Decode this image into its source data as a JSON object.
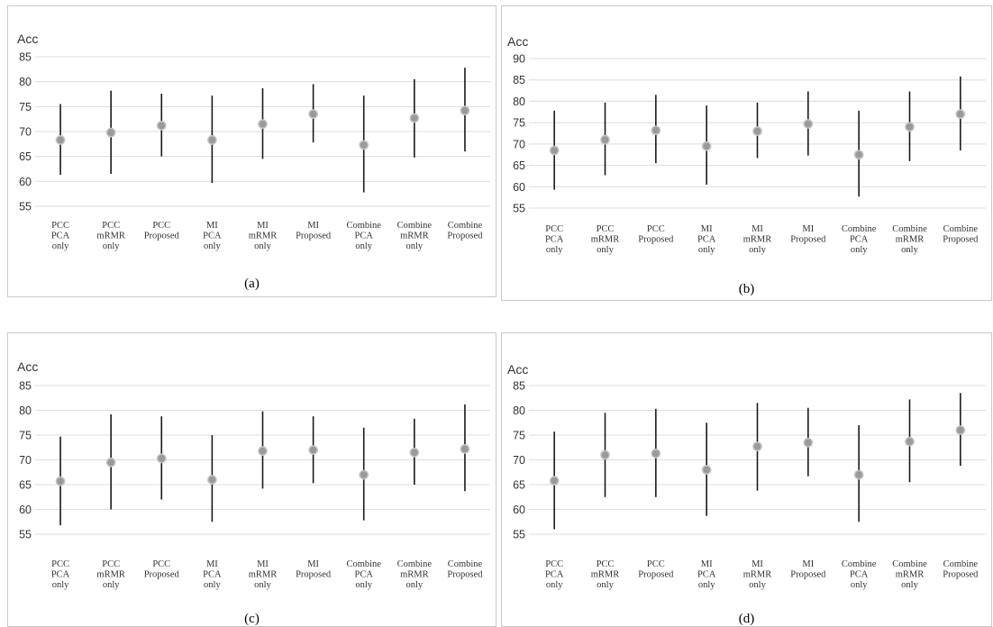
{
  "chart_data": [
    {
      "panel_label": "(a)",
      "type": "scatter",
      "ylabel": "Acc",
      "ylim": [
        55,
        85
      ],
      "yticks": [
        55,
        60,
        65,
        70,
        75,
        80,
        85
      ],
      "grid": true,
      "categories": [
        [
          "PCC",
          "PCA",
          "only"
        ],
        [
          "PCC",
          "mRMR",
          "only"
        ],
        [
          "PCC",
          "Proposed"
        ],
        [
          "MI",
          "PCA",
          "only"
        ],
        [
          "MI",
          "mRMR",
          "only"
        ],
        [
          "MI",
          "Proposed"
        ],
        [
          "Combine",
          "PCA",
          "only"
        ],
        [
          "Combine",
          "mRMR",
          "only"
        ],
        [
          "Combine",
          "Proposed"
        ]
      ],
      "values": [
        68.3,
        69.8,
        71.2,
        68.3,
        71.5,
        73.5,
        67.3,
        72.7,
        74.2
      ],
      "lower": [
        61.3,
        61.5,
        65.0,
        59.7,
        64.5,
        67.8,
        57.8,
        64.8,
        66.0
      ],
      "upper": [
        75.5,
        78.2,
        77.6,
        77.2,
        78.7,
        79.5,
        77.2,
        80.5,
        82.8
      ]
    },
    {
      "panel_label": "(b)",
      "type": "scatter",
      "ylabel": "Acc",
      "ylim": [
        55,
        90
      ],
      "yticks": [
        55,
        60,
        65,
        70,
        75,
        80,
        85,
        90
      ],
      "grid": true,
      "categories": [
        [
          "PCC",
          "PCA",
          "only"
        ],
        [
          "PCC",
          "mRMR",
          "only"
        ],
        [
          "PCC",
          "Proposed"
        ],
        [
          "MI",
          "PCA",
          "only"
        ],
        [
          "MI",
          "mRMR",
          "only"
        ],
        [
          "MI",
          "Proposed"
        ],
        [
          "Combine",
          "PCA",
          "only"
        ],
        [
          "Combine",
          "mRMR",
          "only"
        ],
        [
          "Combine",
          "Proposed"
        ]
      ],
      "values": [
        68.5,
        71.0,
        73.2,
        69.5,
        73.0,
        74.7,
        67.5,
        74.0,
        77.0
      ],
      "lower": [
        59.3,
        62.7,
        65.5,
        60.5,
        66.7,
        67.3,
        57.7,
        66.0,
        68.5
      ],
      "upper": [
        77.8,
        79.7,
        81.5,
        79.0,
        79.7,
        82.3,
        77.8,
        82.3,
        85.8
      ]
    },
    {
      "panel_label": "(c)",
      "type": "scatter",
      "ylabel": "Acc",
      "ylim": [
        55,
        85
      ],
      "yticks": [
        55,
        60,
        65,
        70,
        75,
        80,
        85
      ],
      "grid": true,
      "categories": [
        [
          "PCC",
          "PCA",
          "only"
        ],
        [
          "PCC",
          "mRMR",
          "only"
        ],
        [
          "PCC",
          "Proposed"
        ],
        [
          "MI",
          "PCA",
          "only"
        ],
        [
          "MI",
          "mRMR",
          "only"
        ],
        [
          "MI",
          "Proposed"
        ],
        [
          "Combine",
          "PCA",
          "only"
        ],
        [
          "Combine",
          "mRMR",
          "only"
        ],
        [
          "Combine",
          "Proposed"
        ]
      ],
      "values": [
        65.7,
        69.5,
        70.3,
        66.0,
        71.8,
        72.0,
        67.0,
        71.5,
        72.2
      ],
      "lower": [
        56.8,
        60.0,
        62.0,
        57.5,
        64.2,
        65.3,
        57.8,
        65.0,
        63.7
      ],
      "upper": [
        74.7,
        79.2,
        78.8,
        75.0,
        79.8,
        78.8,
        76.5,
        78.3,
        81.2
      ]
    },
    {
      "panel_label": "(d)",
      "type": "scatter",
      "ylabel": "Acc",
      "ylim": [
        55,
        85
      ],
      "yticks": [
        55,
        60,
        65,
        70,
        75,
        80,
        85
      ],
      "grid": true,
      "categories": [
        [
          "PCC",
          "PCA",
          "only"
        ],
        [
          "PCC",
          "mRMR",
          "only"
        ],
        [
          "PCC",
          "Proposed"
        ],
        [
          "MI",
          "PCA",
          "only"
        ],
        [
          "MI",
          "mRMR",
          "only"
        ],
        [
          "MI",
          "Proposed"
        ],
        [
          "Combine",
          "PCA",
          "only"
        ],
        [
          "Combine",
          "mRMR",
          "only"
        ],
        [
          "Combine",
          "Proposed"
        ]
      ],
      "values": [
        65.8,
        71.0,
        71.3,
        68.0,
        72.7,
        73.5,
        67.0,
        73.7,
        76.0
      ],
      "lower": [
        56.0,
        62.5,
        62.5,
        58.7,
        63.8,
        66.7,
        57.5,
        65.5,
        68.8
      ],
      "upper": [
        75.7,
        79.5,
        80.3,
        77.5,
        81.5,
        80.5,
        77.0,
        82.2,
        83.5
      ]
    }
  ]
}
